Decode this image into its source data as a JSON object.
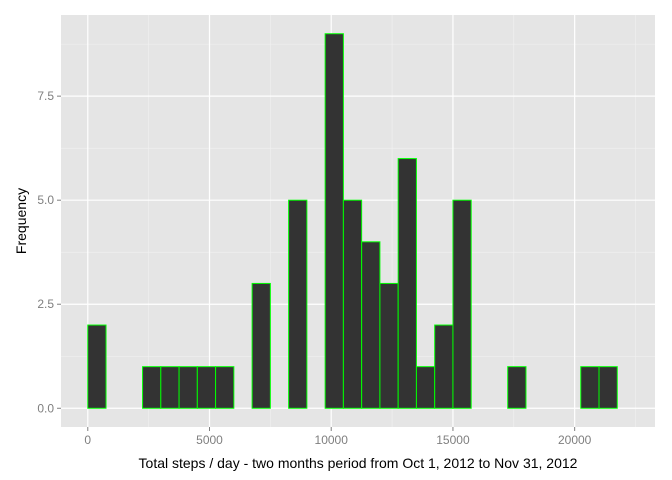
{
  "chart_data": {
    "type": "bar",
    "subtype": "histogram",
    "xlabel": "Total steps / day - two months period from Oct 1, 2012 to Nov 31, 2012",
    "ylabel": "Frequency",
    "x_ticks": [
      "0",
      "5000",
      "10000",
      "15000",
      "20000"
    ],
    "x_tick_values": [
      0,
      5000,
      10000,
      15000,
      20000
    ],
    "y_ticks": [
      "0.0",
      "2.5",
      "5.0",
      "7.5"
    ],
    "y_tick_values": [
      0,
      2.5,
      5,
      7.5
    ],
    "xlim": [
      -1100,
      23300
    ],
    "ylim": [
      -0.45,
      9.45
    ],
    "grid": true,
    "bin_width": 750,
    "bins": [
      {
        "x0": -750,
        "x1": 0,
        "count": 0
      },
      {
        "x0": 0,
        "x1": 750,
        "count": 2
      },
      {
        "x0": 750,
        "x1": 1500,
        "count": 0
      },
      {
        "x0": 1500,
        "x1": 2250,
        "count": 0
      },
      {
        "x0": 2250,
        "x1": 3000,
        "count": 1
      },
      {
        "x0": 3000,
        "x1": 3750,
        "count": 1
      },
      {
        "x0": 3750,
        "x1": 4500,
        "count": 1
      },
      {
        "x0": 4500,
        "x1": 5250,
        "count": 1
      },
      {
        "x0": 5250,
        "x1": 6000,
        "count": 1
      },
      {
        "x0": 6000,
        "x1": 6750,
        "count": 0
      },
      {
        "x0": 6750,
        "x1": 7500,
        "count": 3
      },
      {
        "x0": 7500,
        "x1": 8250,
        "count": 0
      },
      {
        "x0": 8250,
        "x1": 9000,
        "count": 5
      },
      {
        "x0": 9000,
        "x1": 9750,
        "count": 0
      },
      {
        "x0": 9750,
        "x1": 10500,
        "count": 9
      },
      {
        "x0": 10500,
        "x1": 11250,
        "count": 5
      },
      {
        "x0": 11250,
        "x1": 12000,
        "count": 4
      },
      {
        "x0": 12000,
        "x1": 12750,
        "count": 3
      },
      {
        "x0": 12750,
        "x1": 13500,
        "count": 6
      },
      {
        "x0": 13500,
        "x1": 14250,
        "count": 1
      },
      {
        "x0": 14250,
        "x1": 15000,
        "count": 2
      },
      {
        "x0": 15000,
        "x1": 15750,
        "count": 5
      },
      {
        "x0": 15750,
        "x1": 16500,
        "count": 0
      },
      {
        "x0": 16500,
        "x1": 17250,
        "count": 0
      },
      {
        "x0": 17250,
        "x1": 18000,
        "count": 1
      },
      {
        "x0": 18000,
        "x1": 18750,
        "count": 0
      },
      {
        "x0": 18750,
        "x1": 19500,
        "count": 0
      },
      {
        "x0": 19500,
        "x1": 20250,
        "count": 0
      },
      {
        "x0": 20250,
        "x1": 21000,
        "count": 1
      },
      {
        "x0": 21000,
        "x1": 21750,
        "count": 1
      },
      {
        "x0": 21750,
        "x1": 22500,
        "count": 0
      }
    ],
    "colors": {
      "panel_background": "#e5e5e5",
      "grid_major": "#ffffff",
      "grid_minor": "#f2f2f2",
      "bar_fill": "#333333",
      "bar_outline": "#00ff00",
      "tick_label": "#7f7f7f",
      "axis_title": "#000000"
    }
  }
}
